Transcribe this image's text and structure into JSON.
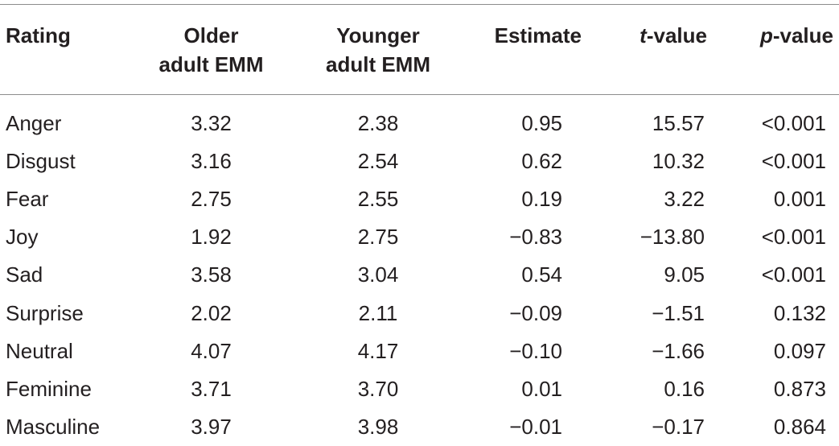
{
  "table": {
    "headers": {
      "rating": "Rating",
      "older_line1": "Older",
      "older_line2": "adult EMM",
      "younger_line1": "Younger",
      "younger_line2": "adult EMM",
      "estimate": "Estimate",
      "t_italic": "t",
      "t_rest": "-value",
      "p_italic": "p",
      "p_rest": "-value"
    },
    "rows": [
      {
        "rating": "Anger",
        "older": "3.32",
        "younger": "2.38",
        "estimate": "0.95",
        "t": "15.57",
        "p": "<0.001"
      },
      {
        "rating": "Disgust",
        "older": "3.16",
        "younger": "2.54",
        "estimate": "0.62",
        "t": "10.32",
        "p": "<0.001"
      },
      {
        "rating": "Fear",
        "older": "2.75",
        "younger": "2.55",
        "estimate": "0.19",
        "t": "3.22",
        "p": "0.001"
      },
      {
        "rating": "Joy",
        "older": "1.92",
        "younger": "2.75",
        "estimate": "−0.83",
        "t": "−13.80",
        "p": "<0.001"
      },
      {
        "rating": "Sad",
        "older": "3.58",
        "younger": "3.04",
        "estimate": "0.54",
        "t": "9.05",
        "p": "<0.001"
      },
      {
        "rating": "Surprise",
        "older": "2.02",
        "younger": "2.11",
        "estimate": "−0.09",
        "t": "−1.51",
        "p": "0.132"
      },
      {
        "rating": "Neutral",
        "older": "4.07",
        "younger": "4.17",
        "estimate": "−0.10",
        "t": "−1.66",
        "p": "0.097"
      },
      {
        "rating": "Feminine",
        "older": "3.71",
        "younger": "3.70",
        "estimate": "0.01",
        "t": "0.16",
        "p": "0.873"
      },
      {
        "rating": "Masculine",
        "older": "3.97",
        "younger": "3.98",
        "estimate": "−0.01",
        "t": "−0.17",
        "p": "0.864"
      }
    ]
  }
}
